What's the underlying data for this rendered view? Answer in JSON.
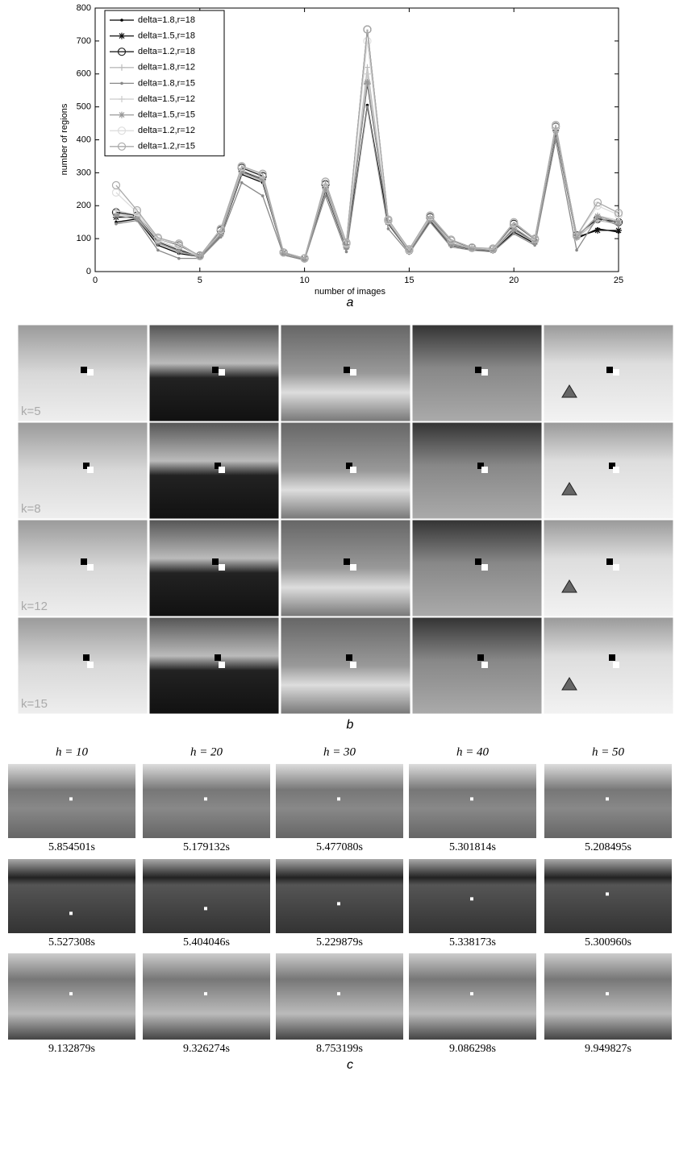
{
  "chart_data": {
    "type": "line",
    "x_label": "number of images",
    "y_label": "number of regions",
    "x": [
      1,
      2,
      3,
      4,
      5,
      6,
      7,
      8,
      9,
      10,
      11,
      12,
      13,
      14,
      15,
      16,
      17,
      18,
      19,
      20,
      21,
      22,
      23,
      24,
      25
    ],
    "xlim": [
      0,
      25
    ],
    "xticks": [
      0,
      5,
      10,
      15,
      20,
      25
    ],
    "ylim": [
      0,
      800
    ],
    "yticks": [
      0,
      100,
      200,
      300,
      400,
      500,
      600,
      700,
      800
    ],
    "legend": "upper-left",
    "series": [
      {
        "name": "delta=1.8,r=18",
        "color": "#000000",
        "marker": "dot",
        "values": [
          150,
          160,
          80,
          55,
          45,
          110,
          295,
          270,
          55,
          38,
          245,
          70,
          505,
          145,
          60,
          155,
          80,
          68,
          62,
          120,
          85,
          420,
          100,
          130,
          120
        ]
      },
      {
        "name": "delta=1.5,r=18",
        "color": "#111111",
        "marker": "star",
        "values": [
          165,
          165,
          90,
          65,
          47,
          115,
          305,
          280,
          57,
          39,
          255,
          75,
          570,
          150,
          62,
          160,
          85,
          70,
          65,
          130,
          90,
          430,
          105,
          125,
          125
        ]
      },
      {
        "name": "delta=1.2,r=18",
        "color": "#222222",
        "marker": "circle",
        "values": [
          180,
          170,
          100,
          80,
          48,
          125,
          315,
          290,
          58,
          40,
          265,
          85,
          735,
          155,
          65,
          165,
          95,
          72,
          68,
          145,
          98,
          440,
          110,
          160,
          150
        ]
      },
      {
        "name": "delta=1.8,r=12",
        "color": "#bbbbbb",
        "marker": "plus",
        "values": [
          175,
          165,
          85,
          60,
          45,
          112,
          300,
          275,
          56,
          38,
          250,
          72,
          620,
          148,
          61,
          158,
          82,
          69,
          64,
          125,
          88,
          425,
          102,
          155,
          145
        ]
      },
      {
        "name": "delta=1.8,r=15",
        "color": "#888888",
        "marker": "dot",
        "values": [
          145,
          155,
          65,
          40,
          40,
          105,
          270,
          230,
          50,
          35,
          230,
          60,
          500,
          130,
          55,
          150,
          75,
          65,
          60,
          115,
          80,
          400,
          65,
          165,
          140
        ]
      },
      {
        "name": "delta=1.5,r=12",
        "color": "#cccccc",
        "marker": "plus",
        "values": [
          185,
          172,
          95,
          70,
          46,
          118,
          308,
          283,
          57,
          39,
          258,
          78,
          600,
          152,
          63,
          162,
          88,
          71,
          66,
          135,
          92,
          432,
          106,
          170,
          155
        ]
      },
      {
        "name": "delta=1.5,r=15",
        "color": "#999999",
        "marker": "star",
        "values": [
          170,
          160,
          88,
          62,
          45,
          114,
          302,
          278,
          56,
          38,
          252,
          74,
          575,
          149,
          61,
          159,
          84,
          70,
          64,
          128,
          89,
          428,
          104,
          168,
          150
        ]
      },
      {
        "name": "delta=1.2,r=12",
        "color": "#dddddd",
        "marker": "circle",
        "values": [
          240,
          180,
          100,
          82,
          47,
          128,
          318,
          295,
          58,
          40,
          270,
          86,
          700,
          156,
          66,
          168,
          96,
          73,
          69,
          148,
          99,
          442,
          108,
          200,
          172
        ]
      },
      {
        "name": "delta=1.2,r=15",
        "color": "#aaaaaa",
        "marker": "circle",
        "values": [
          262,
          186,
          103,
          85,
          47,
          130,
          320,
          297,
          58,
          40,
          273,
          88,
          735,
          158,
          68,
          170,
          97,
          73,
          70,
          150,
          100,
          445,
          108,
          210,
          178
        ]
      }
    ]
  },
  "panel_labels": [
    "a",
    "b",
    "c"
  ],
  "grid_b": {
    "row_labels": [
      "k=5",
      "k=8",
      "k=12",
      "k=15"
    ]
  },
  "grid_c": {
    "column_labels": [
      "h = 10",
      "h = 20",
      "h = 30",
      "h = 40",
      "h = 50"
    ],
    "times": [
      [
        "5.854501s",
        "5.179132s",
        "5.477080s",
        "5.301814s",
        "5.208495s"
      ],
      [
        "5.527308s",
        "5.404046s",
        "5.229879s",
        "5.338173s",
        "5.300960s"
      ],
      [
        "9.132879s",
        "9.326274s",
        "8.753199s",
        "9.086298s",
        "9.949827s"
      ]
    ]
  }
}
